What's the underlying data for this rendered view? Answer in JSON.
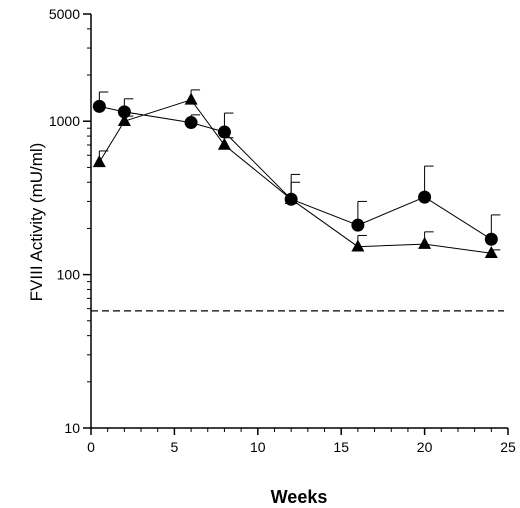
{
  "chart_data": {
    "type": "line",
    "title": "",
    "xlabel": "Weeks",
    "ylabel": "FVIII Activity (mU/ml)",
    "x_scale": "linear",
    "y_scale": "log",
    "xlim": [
      0,
      25
    ],
    "ylim": [
      10,
      5000
    ],
    "x_ticks": [
      0,
      5,
      10,
      15,
      20,
      25
    ],
    "x_tick_labels": [
      "0",
      "5",
      "10",
      "15",
      "20",
      "25"
    ],
    "y_ticks": [
      10,
      100,
      1000,
      5000
    ],
    "y_tick_labels": [
      "10",
      "100",
      "1000",
      "5000"
    ],
    "grid": false,
    "legend": "none",
    "series": [
      {
        "marker": "circle",
        "color": "#000000",
        "x": [
          0.5,
          2,
          6,
          8,
          12,
          16,
          20,
          24
        ],
        "y": [
          1250,
          1150,
          980,
          850,
          310,
          210,
          320,
          170
        ],
        "error_upper": [
          1550,
          1400,
          1100,
          1130,
          450,
          300,
          510,
          245
        ]
      },
      {
        "marker": "triangle",
        "color": "#000000",
        "x": [
          0.5,
          2,
          6,
          8,
          12,
          16,
          20,
          24
        ],
        "y": [
          540,
          1000,
          1380,
          700,
          310,
          152,
          158,
          138
        ],
        "error_upper": [
          640,
          1080,
          1600,
          780,
          400,
          180,
          190,
          145
        ]
      }
    ],
    "reference_lines": [
      {
        "orientation": "horizontal",
        "y": 58,
        "style": "dashed",
        "color": "#000000"
      }
    ]
  }
}
